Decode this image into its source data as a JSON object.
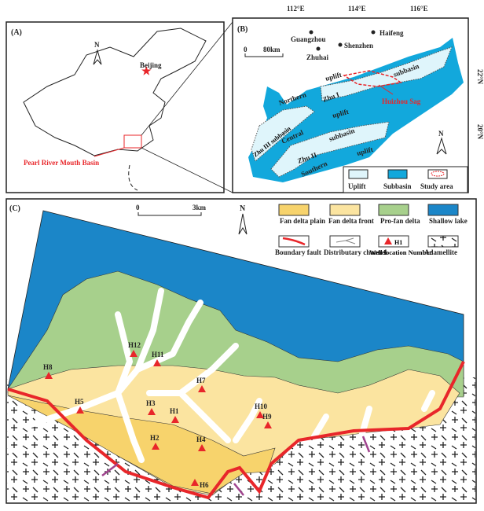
{
  "panelA": {
    "label": "(A)",
    "north": "N",
    "city": "Beijing",
    "basin": "Pearl River Mouth Basin"
  },
  "panelB": {
    "label": "(B)",
    "lon_ticks": [
      "112°E",
      "114°E",
      "116°E"
    ],
    "lat_ticks": [
      "22°N",
      "20°N"
    ],
    "cities": [
      "Guangzhou",
      "Shenzhen",
      "Haifeng",
      "Zhuhai"
    ],
    "scale": [
      "0",
      "80km"
    ],
    "north": "N",
    "units": [
      "Northern",
      "uplift",
      "Zhu I",
      "subbasin",
      "Central",
      "uplift",
      "Zhu III subbasin",
      "Zhu II",
      "subbasin",
      "Southern",
      "uplift"
    ],
    "sag": "Huizhou Sag",
    "legend": [
      "Uplift",
      "Subbasin",
      "Study area"
    ]
  },
  "panelC": {
    "label": "(C)",
    "scale": [
      "0",
      "3km"
    ],
    "north": "N",
    "legend": [
      "Fan delta plain",
      "Fan delta front",
      "Pro-fan delta",
      "Shallow lake",
      "Boundary fault",
      "Distributary channel",
      "Well location Number",
      "Adamellite"
    ],
    "legend_sample_well": "H1",
    "wells": [
      "H1",
      "H2",
      "H3",
      "H4",
      "H5",
      "H6",
      "H7",
      "H8",
      "H9",
      "H10",
      "H11",
      "H12"
    ]
  },
  "colors": {
    "lake": "#1b86c8",
    "subbasin": "#12a8dc",
    "uplift": "#dff5fb",
    "pro_fan": "#a7d08c",
    "front": "#fbe4a0",
    "plain": "#f7d36c",
    "fault": "#e8262a",
    "well": "#e8262a",
    "sag": "#e8262a"
  }
}
